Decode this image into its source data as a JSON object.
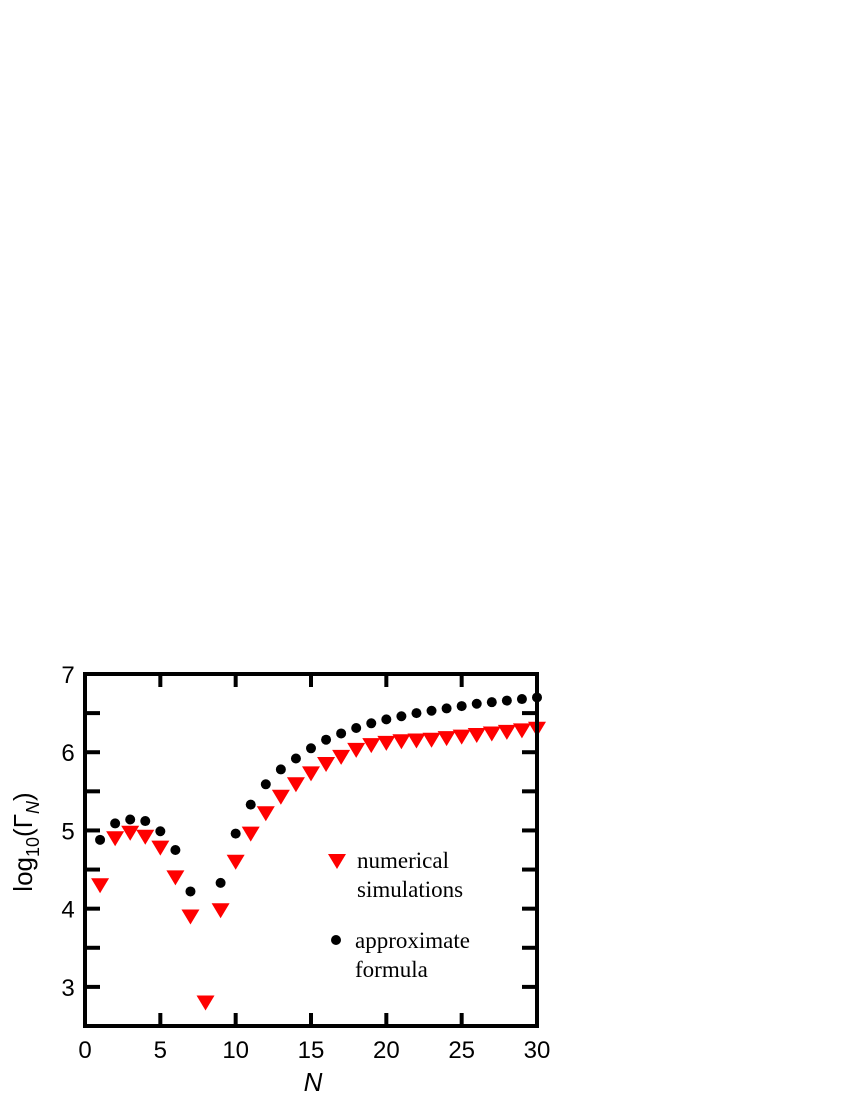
{
  "chart_data": {
    "type": "scatter",
    "xlabel": "N",
    "ylabel": "log10(ΓN)",
    "xlim": [
      0,
      30
    ],
    "ylim": [
      2.5,
      7
    ],
    "xticks": [
      0,
      5,
      10,
      15,
      20,
      25,
      30
    ],
    "yticks": [
      3,
      4,
      5,
      6,
      7
    ],
    "grid": false,
    "legend_position": "center-right",
    "series": [
      {
        "name_lines": [
          "numerical",
          "simulations"
        ],
        "marker": "triangle-down",
        "color": "#ff0000",
        "x": [
          1,
          2,
          3,
          4,
          5,
          6,
          7,
          8,
          9,
          10,
          11,
          12,
          13,
          14,
          15,
          16,
          17,
          18,
          19,
          20,
          21,
          22,
          23,
          24,
          25,
          26,
          27,
          28,
          29,
          30
        ],
        "y": [
          4.3,
          4.9,
          4.97,
          4.92,
          4.78,
          4.4,
          3.9,
          2.8,
          3.98,
          4.6,
          4.96,
          5.22,
          5.43,
          5.59,
          5.73,
          5.85,
          5.94,
          6.03,
          6.09,
          6.12,
          6.14,
          6.15,
          6.16,
          6.18,
          6.2,
          6.22,
          6.24,
          6.26,
          6.28,
          6.3
        ]
      },
      {
        "name_lines": [
          "approximate",
          "formula"
        ],
        "marker": "circle",
        "color": "#000000",
        "x": [
          1,
          2,
          3,
          4,
          5,
          6,
          7,
          8,
          9,
          10,
          11,
          12,
          13,
          14,
          15,
          16,
          17,
          18,
          19,
          20,
          21,
          22,
          23,
          24,
          25,
          26,
          27,
          28,
          29,
          30
        ],
        "y": [
          4.88,
          5.09,
          5.14,
          5.12,
          4.99,
          4.75,
          4.22,
          null,
          4.33,
          4.96,
          5.33,
          5.59,
          5.78,
          5.92,
          6.05,
          6.16,
          6.24,
          6.31,
          6.37,
          6.42,
          6.46,
          6.5,
          6.53,
          6.56,
          6.59,
          6.62,
          6.64,
          6.66,
          6.68,
          6.7
        ]
      }
    ]
  }
}
